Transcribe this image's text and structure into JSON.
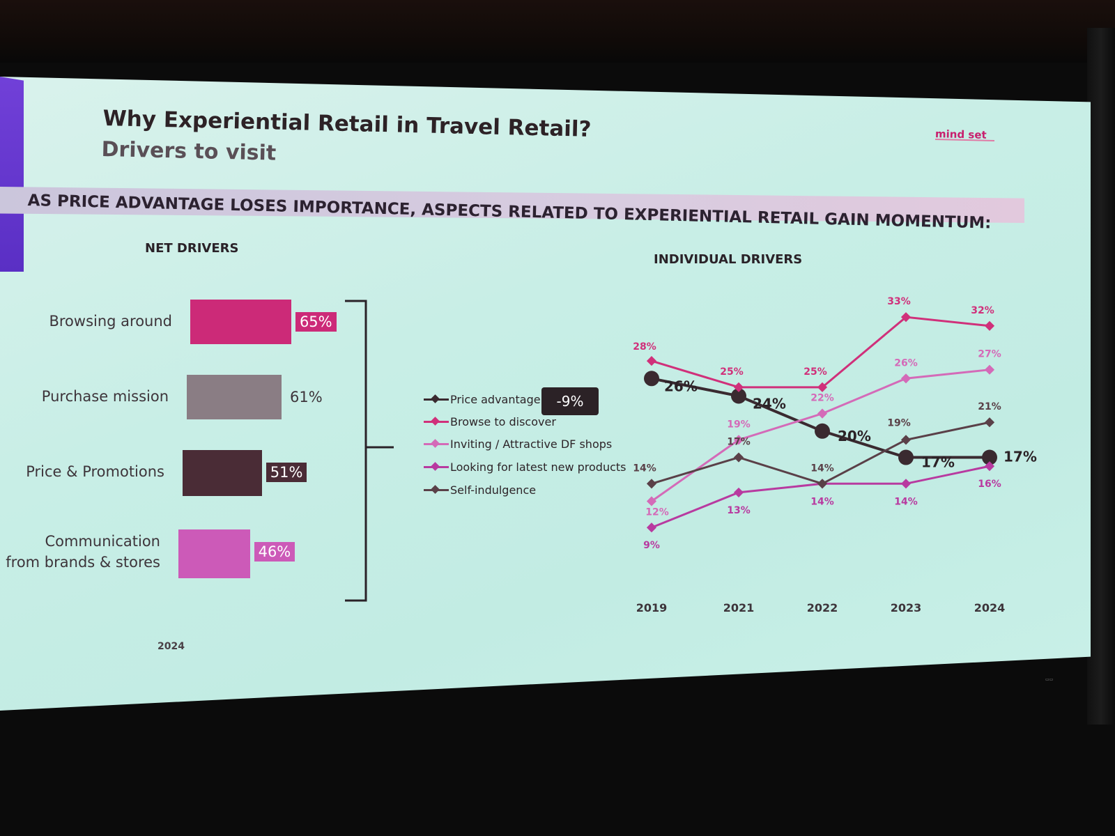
{
  "slide": {
    "title": "Why Experiential Retail in Travel Retail?",
    "subtitle": "Drivers to visit",
    "banner": "AS PRICE ADVANTAGE LOSES IMPORTANCE, ASPECTS RELATED TO EXPERIENTIAL RETAIL GAIN MOMENTUM:",
    "logo": "mind set"
  },
  "chart_data": [
    {
      "type": "bar",
      "title": "NET DRIVERS",
      "xlabel": "2024",
      "categories": [
        "Browsing around",
        "Purchase mission",
        "Price & Promotions",
        "Communication from brands & stores"
      ],
      "category_lines": [
        [
          "Browsing around"
        ],
        [
          "Purchase mission"
        ],
        [
          "Price & Promotions"
        ],
        [
          "Communication",
          "from brands & stores"
        ]
      ],
      "values": [
        65,
        61,
        51,
        46
      ],
      "value_labels": [
        "65%",
        "61%",
        "51%",
        "46%"
      ],
      "colors": [
        "#cc2a78",
        "#8a7d84",
        "#4a2c36",
        "#cc5ab8"
      ],
      "label_styles": [
        "boxed",
        "plain",
        "boxed-dark",
        "boxed"
      ],
      "xlim": [
        0,
        100
      ]
    },
    {
      "type": "line",
      "title": "INDIVIDUAL DRIVERS",
      "x": [
        "2019",
        "2021",
        "2022",
        "2023",
        "2024"
      ],
      "series": [
        {
          "name": "Price advantage",
          "values": [
            26,
            24,
            20,
            17,
            17
          ],
          "labels": [
            "26%",
            "24%",
            "20%",
            "17%",
            "17%"
          ],
          "color": "#3a2a30",
          "style": "big-dot"
        },
        {
          "name": "Browse to discover",
          "values": [
            28,
            25,
            25,
            33,
            32
          ],
          "labels": [
            "28%",
            "25%",
            "25%",
            "33%",
            "32%"
          ],
          "color": "#d0307a",
          "style": "diamond"
        },
        {
          "name": "Inviting / Attractive DF shops",
          "values": [
            12,
            19,
            22,
            26,
            27
          ],
          "labels": [
            "12%",
            "19%",
            "22%",
            "26%",
            "27%"
          ],
          "color": "#d46ab8",
          "style": "diamond"
        },
        {
          "name": "Looking for latest new products",
          "values": [
            9,
            13,
            14,
            14,
            16
          ],
          "labels": [
            "9%",
            "13%",
            "14%",
            "14%",
            "16%"
          ],
          "color": "#b83aa0",
          "style": "diamond"
        },
        {
          "name": "Self-indulgence",
          "values": [
            14,
            17,
            14,
            19,
            21
          ],
          "labels": [
            "14%",
            "17%",
            "14%",
            "19%",
            "21%"
          ],
          "color": "#5a4048",
          "style": "diamond"
        }
      ],
      "callout": "-9%",
      "ylim": [
        6,
        35
      ],
      "grid": false,
      "legend_position": "left"
    }
  ]
}
